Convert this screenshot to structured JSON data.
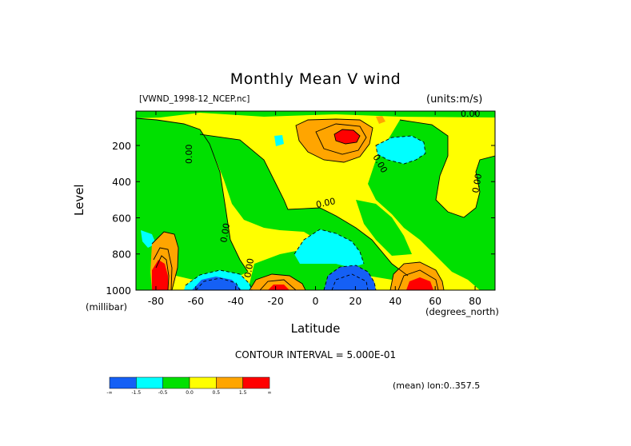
{
  "chart_data": {
    "type": "heatmap",
    "title": "Monthly Mean V wind",
    "subtitle_left": "[VWND_1998-12_NCEP.nc]",
    "subtitle_right": "(units:m/s)",
    "xlabel": "Latitude",
    "x_units": "(degrees_north)",
    "ylabel": "Level",
    "y_units": "(millibar)",
    "xlim": [
      -90,
      90
    ],
    "ylim": [
      1000,
      10
    ],
    "x_ticks": [
      -80,
      -60,
      -40,
      -20,
      0,
      20,
      40,
      60,
      80
    ],
    "y_ticks": [
      200,
      400,
      600,
      800,
      1000
    ],
    "contour_interval_text": "CONTOUR INTERVAL = 5.000E-01",
    "mean_note": "(mean) lon:0..357.5",
    "contour_labels": [
      "0.00",
      "0.00",
      "0.00",
      "0.00",
      "0.00",
      "0.00",
      "0.00",
      "0.00"
    ],
    "colorbar": {
      "colors": [
        "#1560f5",
        "#00ffff",
        "#00e000",
        "#ffff00",
        "#ffa500",
        "#ff0000"
      ],
      "labels": [
        "-∞",
        "-1.5",
        "-0.5",
        "0.0",
        "0.5",
        "1.5",
        "∞"
      ]
    },
    "colors": {
      "background_field": "#ffff00",
      "negative_weak": "#00e000",
      "negative_mid": "#00ffff",
      "negative_strong": "#1560f5",
      "positive_mid": "#ffa500",
      "positive_strong": "#ff0000"
    }
  }
}
